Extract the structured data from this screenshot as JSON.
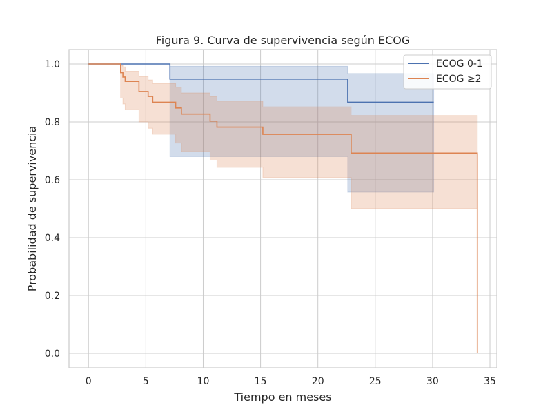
{
  "chart_data": {
    "type": "line",
    "title": "Figura 9. Curva de supervivencia según ECOG",
    "xlabel": "Tiempo en meses",
    "ylabel": "Probabilidad de supervivencia",
    "xlim": [
      -1.7,
      35.6
    ],
    "ylim": [
      -0.05,
      1.05
    ],
    "xticks": [
      0,
      5,
      10,
      15,
      20,
      25,
      30,
      35
    ],
    "yticks": [
      0.0,
      0.2,
      0.4,
      0.6,
      0.8,
      1.0
    ],
    "xtick_labels": [
      "0",
      "5",
      "10",
      "15",
      "20",
      "25",
      "30",
      "35"
    ],
    "ytick_labels": [
      "0.0",
      "0.2",
      "0.4",
      "0.6",
      "0.8",
      "1.0"
    ],
    "grid": true,
    "legend_position": "top-right",
    "series": [
      {
        "name": "ECOG 0-1",
        "color": "#4c72b0",
        "steps": [
          [
            0,
            1.0
          ],
          [
            7.1,
            0.948
          ],
          [
            22.6,
            0.868
          ]
        ],
        "end_x": 30.1,
        "ci": [
          [
            0,
            1.0,
            1.0
          ],
          [
            7.1,
            0.68,
            0.992
          ],
          [
            22.6,
            0.557,
            0.967
          ]
        ]
      },
      {
        "name": "ECOG ≥2",
        "color": "#dd8452",
        "steps": [
          [
            0,
            1.0
          ],
          [
            2.8,
            0.97
          ],
          [
            3.0,
            0.955
          ],
          [
            3.2,
            0.94
          ],
          [
            4.4,
            0.905
          ],
          [
            5.2,
            0.888
          ],
          [
            5.6,
            0.868
          ],
          [
            7.6,
            0.848
          ],
          [
            8.1,
            0.827
          ],
          [
            10.6,
            0.803
          ],
          [
            11.2,
            0.782
          ],
          [
            15.2,
            0.757
          ],
          [
            22.9,
            0.692
          ],
          [
            33.9,
            0.0
          ]
        ],
        "end_x": 33.9,
        "ci": [
          [
            0,
            1.0,
            1.0
          ],
          [
            2.8,
            0.882,
            0.995
          ],
          [
            3.0,
            0.862,
            0.99
          ],
          [
            3.2,
            0.842,
            0.975
          ],
          [
            4.4,
            0.8,
            0.957
          ],
          [
            5.2,
            0.778,
            0.945
          ],
          [
            5.6,
            0.757,
            0.933
          ],
          [
            7.6,
            0.727,
            0.92
          ],
          [
            8.1,
            0.697,
            0.9
          ],
          [
            10.6,
            0.668,
            0.887
          ],
          [
            11.2,
            0.643,
            0.872
          ],
          [
            15.2,
            0.608,
            0.852
          ],
          [
            22.9,
            0.5,
            0.822
          ],
          [
            33.9,
            0.5,
            0.822
          ]
        ]
      }
    ]
  }
}
